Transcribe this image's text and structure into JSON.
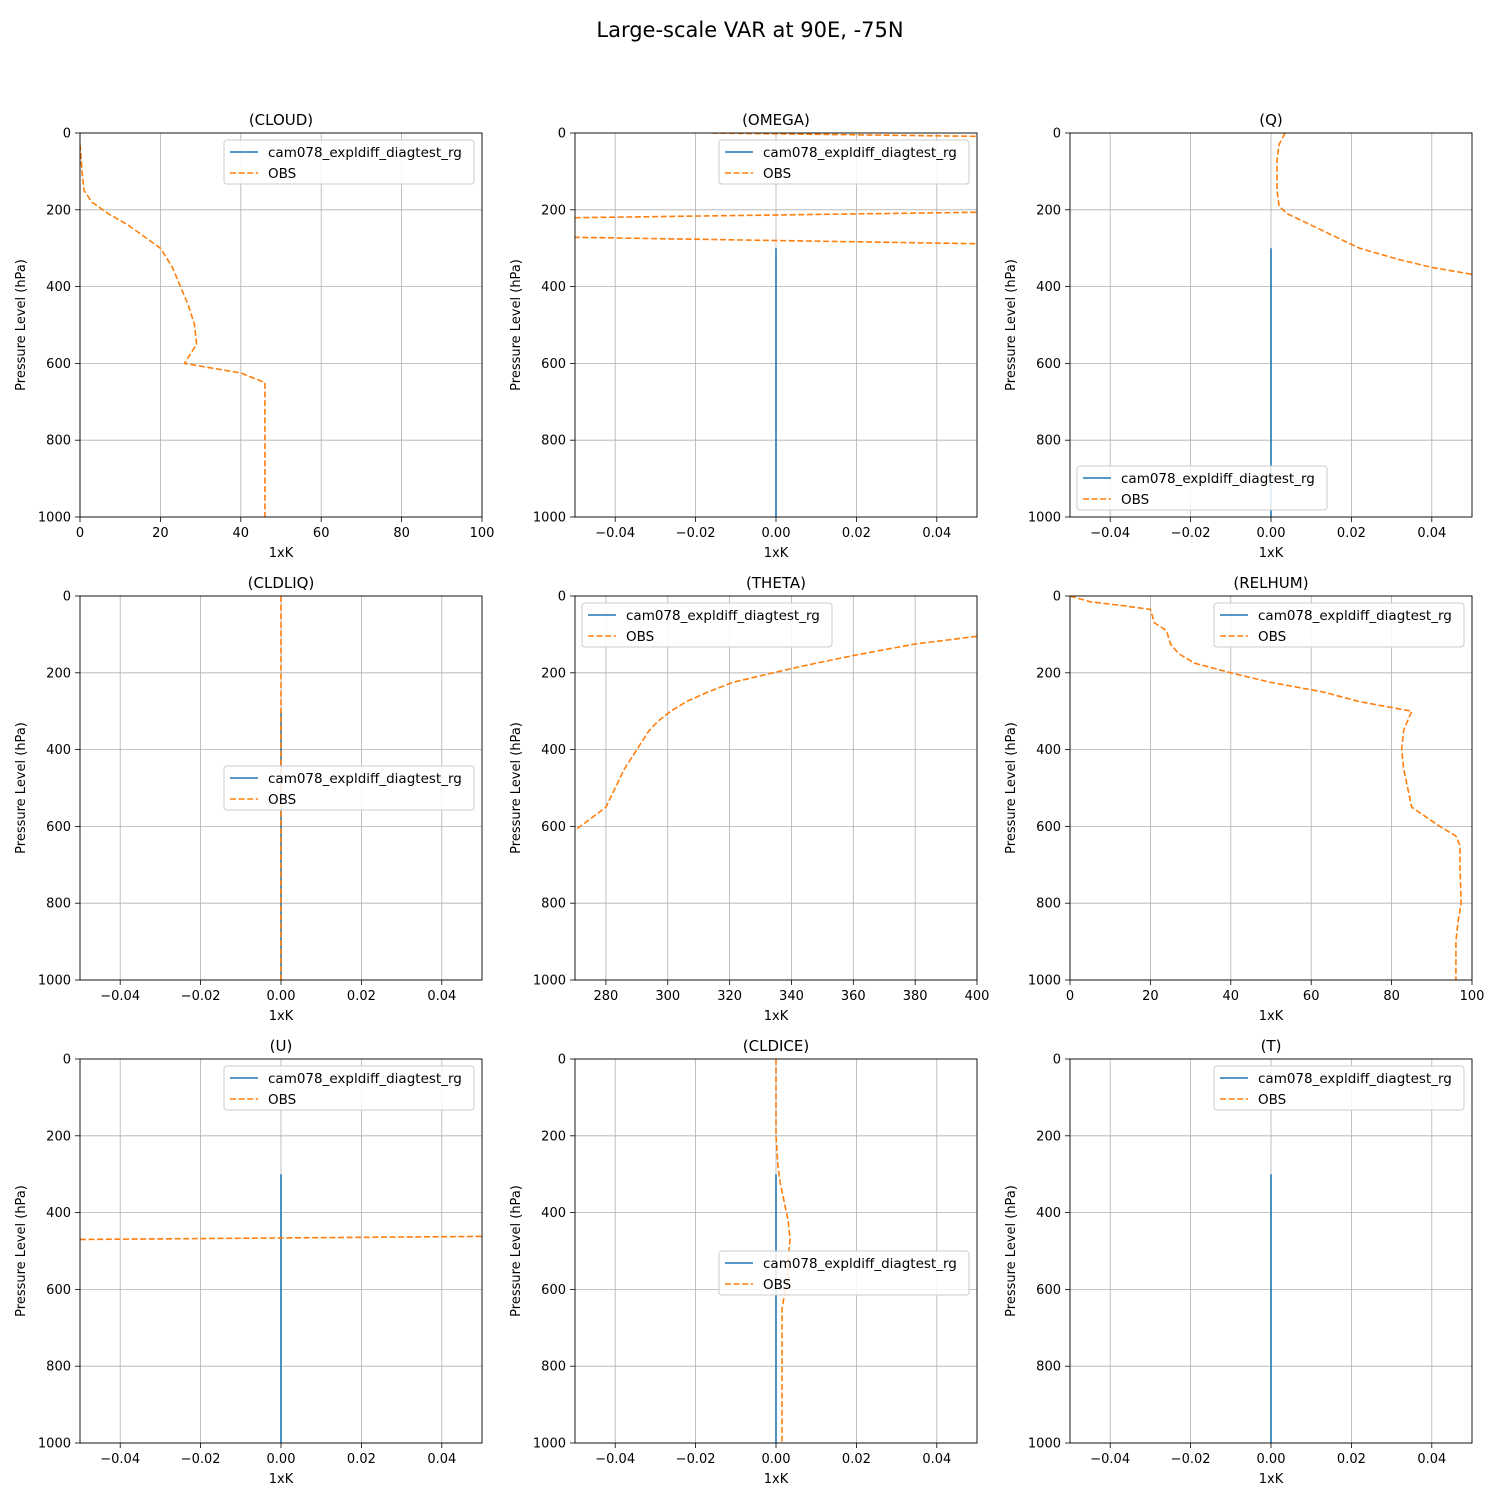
{
  "figure": {
    "suptitle": "Large-scale VAR at 90E, -75N"
  },
  "colors": {
    "model": "#1f77b4",
    "obs": "#ff7f0e",
    "grid": "#b0b0b0"
  },
  "chart_data": [
    {
      "type": "line",
      "title": "(CLOUD)",
      "xlabel": "1xK",
      "ylabel": "Pressure Level (hPa)",
      "xlim": [
        0,
        100
      ],
      "ylim": [
        1000,
        0
      ],
      "grid": true,
      "legend": "upper right",
      "xticks": [
        "0",
        "20",
        "40",
        "60",
        "80",
        "100"
      ],
      "yticks": [
        "0",
        "200",
        "400",
        "600",
        "800",
        "1000"
      ],
      "series": [
        {
          "name": "cam078_expldiff_diagtest_rg",
          "style": "solid",
          "points": []
        },
        {
          "name": "OBS",
          "style": "dashed",
          "points": [
            [
              0,
              30
            ],
            [
              0.3,
              70
            ],
            [
              0.5,
              100
            ],
            [
              1,
              150
            ],
            [
              3,
              180
            ],
            [
              7,
              210
            ],
            [
              12,
              240
            ],
            [
              20,
              300
            ],
            [
              23,
              350
            ],
            [
              25,
              400
            ],
            [
              27,
              450
            ],
            [
              28.5,
              500
            ],
            [
              29,
              550
            ],
            [
              26,
              600
            ],
            [
              40,
              625
            ],
            [
              46,
              650
            ],
            [
              46,
              700
            ],
            [
              46,
              800
            ],
            [
              46,
              900
            ],
            [
              46,
              1000
            ]
          ]
        }
      ]
    },
    {
      "type": "line",
      "title": "(OMEGA)",
      "xlabel": "1xK",
      "ylabel": "Pressure Level (hPa)",
      "xlim": [
        -0.05,
        0.05
      ],
      "ylim": [
        1000,
        0
      ],
      "grid": true,
      "legend": "upper right",
      "xticks": [
        "−0.04",
        "−0.02",
        "0.00",
        "0.02",
        "0.04"
      ],
      "yticks": [
        "0",
        "200",
        "400",
        "600",
        "800",
        "1000"
      ],
      "series": [
        {
          "name": "cam078_expldiff_diagtest_rg",
          "style": "solid",
          "points": [
            [
              0,
              300
            ],
            [
              0,
              1000
            ]
          ]
        },
        {
          "name": "OBS",
          "style": "dashed",
          "points": [
            [
              -0.016,
              0
            ],
            [
              0.06,
              10
            ],
            [
              0.06,
              205
            ],
            [
              -0.06,
              222
            ],
            [
              -0.06,
              270
            ],
            [
              0.06,
              290
            ]
          ]
        }
      ]
    },
    {
      "type": "line",
      "title": "(Q)",
      "xlabel": "1xK",
      "ylabel": "Pressure Level (hPa)",
      "xlim": [
        -0.05,
        0.05
      ],
      "ylim": [
        1000,
        0
      ],
      "grid": true,
      "legend": "lower left",
      "xticks": [
        "−0.04",
        "−0.02",
        "0.00",
        "0.02",
        "0.04"
      ],
      "yticks": [
        "0",
        "200",
        "400",
        "600",
        "800",
        "1000"
      ],
      "series": [
        {
          "name": "cam078_expldiff_diagtest_rg",
          "style": "solid",
          "points": [
            [
              0,
              300
            ],
            [
              0,
              1000
            ]
          ]
        },
        {
          "name": "OBS",
          "style": "dashed",
          "points": [
            [
              0.0035,
              0
            ],
            [
              0.002,
              30
            ],
            [
              0.0015,
              70
            ],
            [
              0.0015,
              150
            ],
            [
              0.002,
              190
            ],
            [
              0.004,
              210
            ],
            [
              0.008,
              230
            ],
            [
              0.014,
              260
            ],
            [
              0.022,
              300
            ],
            [
              0.032,
              330
            ],
            [
              0.04,
              350
            ],
            [
              0.05,
              368
            ]
          ]
        }
      ]
    },
    {
      "type": "line",
      "title": "(CLDLIQ)",
      "xlabel": "1xK",
      "ylabel": "Pressure Level (hPa)",
      "xlim": [
        -0.05,
        0.05
      ],
      "ylim": [
        1000,
        0
      ],
      "grid": true,
      "legend": "center right",
      "xticks": [
        "−0.04",
        "−0.02",
        "0.00",
        "0.02",
        "0.04"
      ],
      "yticks": [
        "0",
        "200",
        "400",
        "600",
        "800",
        "1000"
      ],
      "series": [
        {
          "name": "cam078_expldiff_diagtest_rg",
          "style": "solid",
          "points": [
            [
              0,
              300
            ],
            [
              0,
              1000
            ]
          ]
        },
        {
          "name": "OBS",
          "style": "dashed",
          "points": [
            [
              0,
              0
            ],
            [
              0,
              1000
            ]
          ]
        }
      ]
    },
    {
      "type": "line",
      "title": "(THETA)",
      "xlabel": "1xK",
      "ylabel": "Pressure Level (hPa)",
      "xlim": [
        270,
        400
      ],
      "ylim": [
        1000,
        0
      ],
      "grid": true,
      "legend": "upper left",
      "xticks": [
        "280",
        "300",
        "320",
        "340",
        "360",
        "380",
        "400"
      ],
      "yticks": [
        "0",
        "200",
        "400",
        "600",
        "800",
        "1000"
      ],
      "series": [
        {
          "name": "cam078_expldiff_diagtest_rg",
          "style": "solid",
          "points": []
        },
        {
          "name": "OBS",
          "style": "dashed",
          "points": [
            [
              400,
              105
            ],
            [
              380,
              125
            ],
            [
              360,
              155
            ],
            [
              345,
              180
            ],
            [
              334,
              200
            ],
            [
              321,
              225
            ],
            [
              313,
              250
            ],
            [
              306,
              275
            ],
            [
              301,
              300
            ],
            [
              297,
              325
            ],
            [
              294,
              350
            ],
            [
              290,
              400
            ],
            [
              286,
              450
            ],
            [
              283,
              500
            ],
            [
              280,
              550
            ],
            [
              275,
              580
            ],
            [
              270,
              610
            ]
          ]
        }
      ]
    },
    {
      "type": "line",
      "title": "(RELHUM)",
      "xlabel": "1xK",
      "ylabel": "Pressure Level (hPa)",
      "xlim": [
        0,
        100
      ],
      "ylim": [
        1000,
        0
      ],
      "grid": true,
      "legend": "upper right",
      "xticks": [
        "0",
        "20",
        "40",
        "60",
        "80",
        "100"
      ],
      "yticks": [
        "0",
        "200",
        "400",
        "600",
        "800",
        "1000"
      ],
      "series": [
        {
          "name": "cam078_expldiff_diagtest_rg",
          "style": "solid",
          "points": []
        },
        {
          "name": "OBS",
          "style": "dashed",
          "points": [
            [
              0,
              0
            ],
            [
              5,
              15
            ],
            [
              13,
              25
            ],
            [
              20,
              35
            ],
            [
              21,
              70
            ],
            [
              24,
              90
            ],
            [
              25,
              125
            ],
            [
              27,
              150
            ],
            [
              31,
              175
            ],
            [
              40,
              200
            ],
            [
              50,
              225
            ],
            [
              63,
              250
            ],
            [
              72,
              275
            ],
            [
              85,
              300
            ],
            [
              83,
              350
            ],
            [
              82.5,
              400
            ],
            [
              83,
              450
            ],
            [
              84,
              500
            ],
            [
              85,
              550
            ],
            [
              92,
              600
            ],
            [
              96,
              625
            ],
            [
              97,
              650
            ],
            [
              97,
              700
            ],
            [
              97.3,
              800
            ],
            [
              96.5,
              850
            ],
            [
              96,
              900
            ],
            [
              96,
              1000
            ]
          ]
        }
      ]
    },
    {
      "type": "line",
      "title": "(U)",
      "xlabel": "1xK",
      "ylabel": "Pressure Level (hPa)",
      "xlim": [
        -0.05,
        0.05
      ],
      "ylim": [
        1000,
        0
      ],
      "grid": true,
      "legend": "upper right",
      "xticks": [
        "−0.04",
        "−0.02",
        "0.00",
        "0.02",
        "0.04"
      ],
      "yticks": [
        "0",
        "200",
        "400",
        "600",
        "800",
        "1000"
      ],
      "series": [
        {
          "name": "cam078_expldiff_diagtest_rg",
          "style": "solid",
          "points": [
            [
              0,
              300
            ],
            [
              0,
              1000
            ]
          ]
        },
        {
          "name": "OBS",
          "style": "dashed",
          "points": [
            [
              -0.05,
              470
            ],
            [
              0.05,
              462
            ]
          ]
        }
      ]
    },
    {
      "type": "line",
      "title": "(CLDICE)",
      "xlabel": "1xK",
      "ylabel": "Pressure Level (hPa)",
      "xlim": [
        -0.05,
        0.05
      ],
      "ylim": [
        1000,
        0
      ],
      "grid": true,
      "legend": "center right",
      "xticks": [
        "−0.04",
        "−0.02",
        "0.00",
        "0.02",
        "0.04"
      ],
      "yticks": [
        "0",
        "200",
        "400",
        "600",
        "800",
        "1000"
      ],
      "series": [
        {
          "name": "cam078_expldiff_diagtest_rg",
          "style": "solid",
          "points": [
            [
              0,
              300
            ],
            [
              0,
              1000
            ]
          ]
        },
        {
          "name": "OBS",
          "style": "dashed",
          "points": [
            [
              0,
              0
            ],
            [
              0,
              200
            ],
            [
              0.0005,
              280
            ],
            [
              0.001,
              320
            ],
            [
              0.002,
              370
            ],
            [
              0.003,
              420
            ],
            [
              0.0035,
              470
            ],
            [
              0.003,
              520
            ],
            [
              0.003,
              570
            ],
            [
              0.002,
              620
            ],
            [
              0.0015,
              650
            ],
            [
              0.0015,
              800
            ],
            [
              0.0015,
              1000
            ]
          ]
        }
      ]
    },
    {
      "type": "line",
      "title": "(T)",
      "xlabel": "1xK",
      "ylabel": "Pressure Level (hPa)",
      "xlim": [
        -0.05,
        0.05
      ],
      "ylim": [
        1000,
        0
      ],
      "grid": true,
      "legend": "upper right",
      "xticks": [
        "−0.04",
        "−0.02",
        "0.00",
        "0.02",
        "0.04"
      ],
      "yticks": [
        "0",
        "200",
        "400",
        "600",
        "800",
        "1000"
      ],
      "series": [
        {
          "name": "cam078_expldiff_diagtest_rg",
          "style": "solid",
          "points": [
            [
              0,
              300
            ],
            [
              0,
              1000
            ]
          ]
        },
        {
          "name": "OBS",
          "style": "dashed",
          "points": []
        }
      ]
    }
  ]
}
